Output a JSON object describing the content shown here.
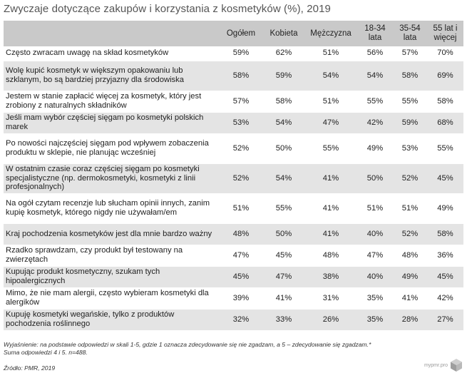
{
  "chart_data": {
    "type": "table",
    "title": "Zwyczaje dotyczące zakupów i korzystania z kosmetyków (%), 2019",
    "columns": [
      "",
      "Ogółem",
      "Kobieta",
      "Mężczyzna",
      "18-34 lata",
      "35-54 lata",
      "55 lat i więcej"
    ],
    "rows": [
      {
        "statement": "Często zwracam uwagę na skład kosmetyków",
        "values": [
          "59%",
          "62%",
          "51%",
          "56%",
          "57%",
          "70%"
        ]
      },
      {
        "statement": "Wolę kupić kosmetyk w większym opakowaniu lub szklanym, bo są bardziej przyjazny dla środowiska",
        "values": [
          "58%",
          "59%",
          "54%",
          "54%",
          "58%",
          "69%"
        ]
      },
      {
        "statement": "Jestem w stanie zapłacić więcej za kosmetyk, który jest zrobiony z naturalnych składników",
        "values": [
          "57%",
          "58%",
          "51%",
          "55%",
          "55%",
          "58%"
        ]
      },
      {
        "statement": "Jeśli mam wybór częściej sięgam po kosmetyki polskich marek",
        "values": [
          "53%",
          "54%",
          "47%",
          "42%",
          "59%",
          "68%"
        ]
      },
      {
        "statement": "Po nowości najczęściej sięgam pod wpływem zobaczenia produktu w sklepie, nie planując wcześniej",
        "values": [
          "52%",
          "50%",
          "55%",
          "49%",
          "53%",
          "55%"
        ]
      },
      {
        "statement": "W ostatnim czasie coraz częściej sięgam po kosmetyki specjalistyczne (np. dermokosmetyki, kosmetyki z linii profesjonalnych)",
        "values": [
          "52%",
          "54%",
          "41%",
          "50%",
          "52%",
          "45%"
        ]
      },
      {
        "statement": "Na ogół czytam recenzje lub słucham opinii innych, zanim kupię kosmetyk, którego nigdy nie używałam/em",
        "values": [
          "51%",
          "55%",
          "41%",
          "51%",
          "51%",
          "49%"
        ]
      },
      {
        "statement": "Kraj pochodzenia kosmetyków jest dla mnie bardzo ważny",
        "values": [
          "48%",
          "50%",
          "41%",
          "40%",
          "52%",
          "58%"
        ]
      },
      {
        "statement": "Rzadko sprawdzam, czy produkt był testowany na zwierzętach",
        "values": [
          "47%",
          "45%",
          "48%",
          "47%",
          "48%",
          "36%"
        ]
      },
      {
        "statement": "Kupując produkt kosmetyczny, szukam tych hipoalergicznych",
        "values": [
          "45%",
          "47%",
          "38%",
          "40%",
          "49%",
          "45%"
        ]
      },
      {
        "statement": "Mimo, że nie mam alergii, często wybieram kosmetyki dla alergików",
        "values": [
          "39%",
          "41%",
          "31%",
          "35%",
          "41%",
          "42%"
        ]
      },
      {
        "statement": "Kupuję kosmetyki wegańskie, tylko z produktów pochodzenia roślinnego",
        "values": [
          "32%",
          "33%",
          "26%",
          "35%",
          "28%",
          "27%"
        ]
      }
    ],
    "note": "Wyjaśnienie: na podstawie odpowiedzi w skali 1-5, gdzie 1 oznacza zdecydowanie się nie zgadzam, a 5 – zdecydowanie się zgadzam.* Suma odpowiedzi 4 i 5. n=488.",
    "source": "Źródło: PMR, 2019",
    "brand": "mypmr.pro"
  },
  "colors": {
    "header_bg": "#c9c9c9",
    "shade_bg": "#e4e4e4",
    "white_bg": "#ffffff",
    "title_color": "#555555"
  },
  "icons": {
    "brand_logo": "cube-icon"
  }
}
